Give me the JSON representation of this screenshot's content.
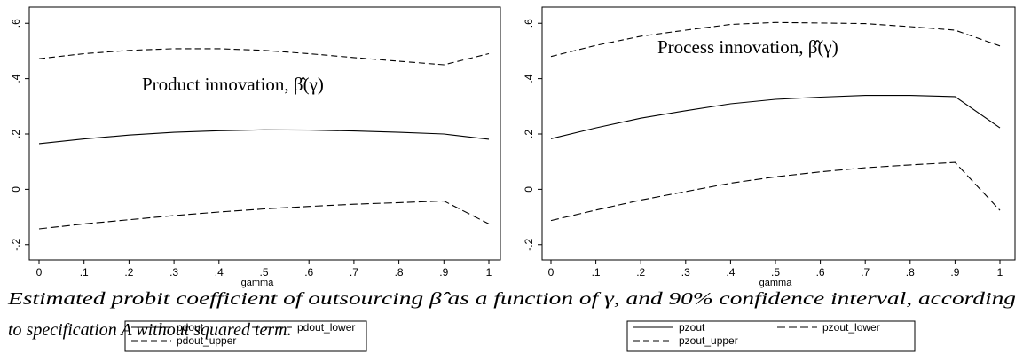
{
  "caption": {
    "line1": "Estimated probit coefficient of outsourcing β̂ as a function of γ, and 90% confidence interval, according",
    "line2": "to specification A without squared term."
  },
  "chart_data": [
    {
      "type": "line",
      "annotation": "Product innovation, β̂(γ)",
      "xlabel": "gamma",
      "ylabel": "",
      "xlim": [
        0,
        1
      ],
      "ylim": [
        -0.22,
        0.62
      ],
      "x_ticks": [
        0,
        0.1,
        0.2,
        0.3,
        0.4,
        0.5,
        0.6,
        0.7,
        0.8,
        0.9,
        1
      ],
      "x_tick_labels": [
        "0",
        ".1",
        ".2",
        ".3",
        ".4",
        ".5",
        ".6",
        ".7",
        ".8",
        ".9",
        "1"
      ],
      "y_ticks": [
        -0.2,
        0,
        0.2,
        0.4,
        0.6
      ],
      "y_tick_labels": [
        "-.2",
        "0",
        ".2",
        ".4",
        ".6"
      ],
      "grid": false,
      "legend": {
        "placement": "bottom",
        "columns": 2
      },
      "x": [
        0,
        0.1,
        0.2,
        0.3,
        0.4,
        0.5,
        0.6,
        0.7,
        0.8,
        0.9,
        1
      ],
      "series": [
        {
          "name": "pdout",
          "style": "solid",
          "values": [
            0.165,
            0.182,
            0.196,
            0.206,
            0.212,
            0.215,
            0.214,
            0.211,
            0.206,
            0.2,
            0.181
          ]
        },
        {
          "name": "pdout_lower",
          "style": "dashed-long",
          "values": [
            -0.143,
            -0.125,
            -0.11,
            -0.095,
            -0.082,
            -0.071,
            -0.062,
            -0.054,
            -0.048,
            -0.042,
            -0.125
          ]
        },
        {
          "name": "pdout_upper",
          "style": "dashed",
          "values": [
            0.472,
            0.49,
            0.502,
            0.508,
            0.508,
            0.502,
            0.49,
            0.476,
            0.463,
            0.45,
            0.49
          ]
        }
      ]
    },
    {
      "type": "line",
      "annotation": "Process innovation, β̂(γ)",
      "xlabel": "gamma",
      "ylabel": "",
      "xlim": [
        0,
        1
      ],
      "ylim": [
        -0.22,
        0.62
      ],
      "x_ticks": [
        0,
        0.1,
        0.2,
        0.3,
        0.4,
        0.5,
        0.6,
        0.7,
        0.8,
        0.9,
        1
      ],
      "x_tick_labels": [
        "0",
        ".1",
        ".2",
        ".3",
        ".4",
        ".5",
        ".6",
        ".7",
        ".8",
        ".9",
        "1"
      ],
      "y_ticks": [
        -0.2,
        0,
        0.2,
        0.4,
        0.6
      ],
      "y_tick_labels": [
        "-.2",
        "0",
        ".2",
        ".4",
        ".6"
      ],
      "grid": false,
      "legend": {
        "placement": "bottom",
        "columns": 2
      },
      "x": [
        0,
        0.1,
        0.2,
        0.3,
        0.4,
        0.5,
        0.6,
        0.7,
        0.8,
        0.9,
        1
      ],
      "series": [
        {
          "name": "pzout",
          "style": "solid",
          "values": [
            0.183,
            0.222,
            0.257,
            0.284,
            0.309,
            0.325,
            0.333,
            0.339,
            0.339,
            0.335,
            0.222
          ]
        },
        {
          "name": "pzout_lower",
          "style": "dashed-long",
          "values": [
            -0.113,
            -0.075,
            -0.039,
            -0.008,
            0.022,
            0.045,
            0.063,
            0.078,
            0.088,
            0.097,
            -0.076
          ]
        },
        {
          "name": "pzout_upper",
          "style": "dashed",
          "values": [
            0.48,
            0.52,
            0.553,
            0.575,
            0.596,
            0.603,
            0.601,
            0.599,
            0.588,
            0.575,
            0.518
          ]
        }
      ]
    }
  ]
}
